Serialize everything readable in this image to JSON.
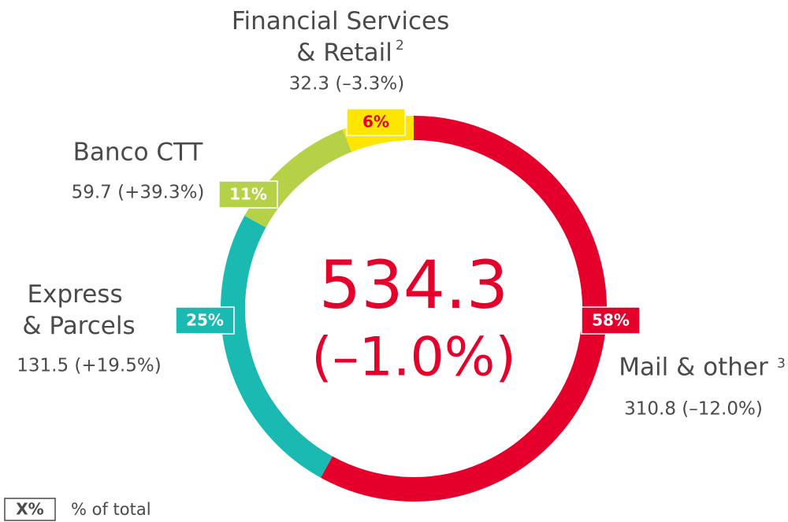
{
  "chart_data": {
    "type": "donut",
    "categories": [
      "Mail & other",
      "Express & Parcels",
      "Banco CTT",
      "Financial Services & Retail"
    ],
    "values": [
      58,
      25,
      11,
      6
    ],
    "value_labels": [
      "58%",
      "25%",
      "11%",
      "6%"
    ],
    "colors": [
      "#e4002b",
      "#1ab9b1",
      "#b5d147",
      "#ffe600"
    ],
    "details": [
      "310.8 (–12.0%)",
      "131.5 (+19.5%)",
      "59.7 (+39.3%)",
      "32.3 (–3.3%)"
    ],
    "notes": [
      "3",
      null,
      null,
      "2"
    ],
    "center_value": "534.3",
    "center_change": "(–1.0%)",
    "legend_key": "X%",
    "legend_text": "% of total"
  }
}
